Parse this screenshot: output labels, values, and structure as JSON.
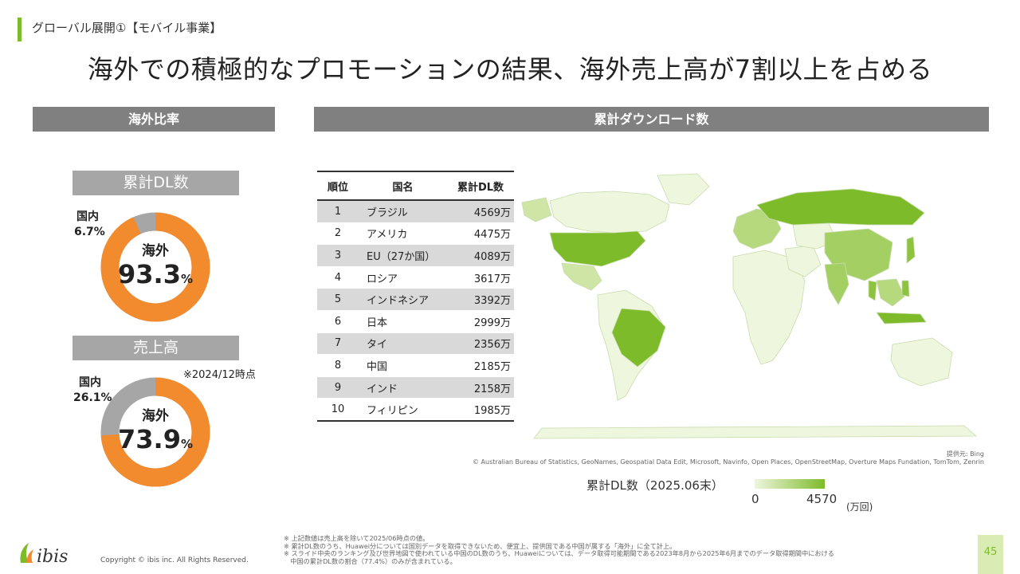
{
  "header": {
    "section_title": "グローバル展開①【モバイル事業】",
    "headline": "海外での積極的なプロモーションの結果、海外売上高が7割以上を占める"
  },
  "overseas_share": {
    "panel_title": "海外比率",
    "cumulative_dl": {
      "subtitle": "累計DL数",
      "domestic_label": "国内",
      "domestic_value": "6.7%",
      "overseas_label": "海外",
      "overseas_value": "93.3",
      "percent_sign": "%",
      "overseas_fraction": 0.933
    },
    "sales": {
      "subtitle": "売上高",
      "as_of": "※2024/12時点",
      "domestic_label": "国内",
      "domestic_value": "26.1%",
      "overseas_label": "海外",
      "overseas_value": "73.9",
      "percent_sign": "%",
      "overseas_fraction": 0.739
    },
    "colors": {
      "overseas": "#f28a2e",
      "domestic": "#a6a6a6"
    }
  },
  "downloads": {
    "panel_title": "累計ダウンロード数",
    "table": {
      "headers": [
        "順位",
        "国名",
        "累計DL数"
      ],
      "rows": [
        {
          "rank": "1",
          "country": "ブラジル",
          "dl": "4569万"
        },
        {
          "rank": "2",
          "country": "アメリカ",
          "dl": "4475万"
        },
        {
          "rank": "3",
          "country": "EU（27か国）",
          "dl": "4089万"
        },
        {
          "rank": "4",
          "country": "ロシア",
          "dl": "3617万"
        },
        {
          "rank": "5",
          "country": "インドネシア",
          "dl": "3392万"
        },
        {
          "rank": "6",
          "country": "日本",
          "dl": "2999万"
        },
        {
          "rank": "7",
          "country": "タイ",
          "dl": "2356万"
        },
        {
          "rank": "8",
          "country": "中国",
          "dl": "2185万"
        },
        {
          "rank": "9",
          "country": "インド",
          "dl": "2158万"
        },
        {
          "rank": "10",
          "country": "フィリピン",
          "dl": "1985万"
        }
      ]
    },
    "map": {
      "source": "提供元: Bing",
      "attribution": "© Australian Bureau of Statistics, GeoNames, Geospatial Data Edit, Microsoft, Navinfo, Open Places, OpenStreetMap, Overture Maps Fundation, TomTom, Zenrin",
      "legend_title": "累計DL数（2025.06末）",
      "legend_min": "0",
      "legend_max": "4570",
      "legend_unit": "(万回)",
      "color_low": "#eef6dd",
      "color_high": "#7dbb2a"
    }
  },
  "footer": {
    "notes": [
      "※ 上記数値は売上高を除いて2025/06時点の値。",
      "※ 累計DL数のうち、Huawei分については国別データを取得できないため、便宜上、提供国である中国が属する「海外」に全て計上。",
      "※ スライド中央のランキング及び世界地図で使われている中国のDL数のうち、Huaweiについては、データ取得可能期間である2023年8月から2025年6月までのデータ取得期間中における",
      "　中国の累計DL数の割合（77.4%）のみが含まれている。"
    ],
    "copyright": "Copyright © ibis inc. All Rights Reserved.",
    "logo_text": "ibis",
    "page_number": "45"
  }
}
